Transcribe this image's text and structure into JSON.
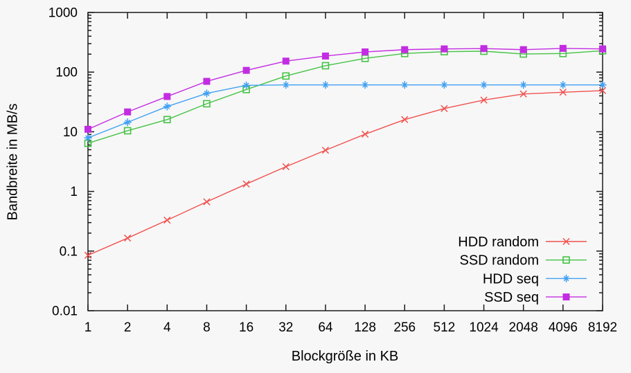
{
  "figure": {
    "title": "",
    "colors": {
      "background": "#f7f7f7",
      "axis": "#1a1a1a",
      "text": "#000000"
    }
  },
  "chart_data": {
    "type": "line",
    "title": "",
    "xlabel": "Blockgröße in KB",
    "ylabel": "Bandbreite in MB/s",
    "x_scale": "log2",
    "y_scale": "log10",
    "xlim": [
      1,
      8192
    ],
    "ylim": [
      0.01,
      1000
    ],
    "grid": false,
    "legend_position": "inside-bottom-right",
    "x": [
      1,
      2,
      4,
      8,
      16,
      32,
      64,
      128,
      256,
      512,
      1024,
      2048,
      4096,
      8192
    ],
    "x_tick_labels": [
      "1",
      "2",
      "4",
      "8",
      "16",
      "32",
      "64",
      "128",
      "256",
      "512",
      "1024",
      "2048",
      "4096",
      "8192"
    ],
    "y_ticks": [
      1000,
      100,
      10,
      1,
      0.1,
      0.01
    ],
    "y_tick_labels": [
      "1000",
      "100",
      "10",
      "1",
      "0.1",
      "0.01"
    ],
    "series": [
      {
        "name": "HDD random",
        "color": "#f0514e",
        "marker": "cross",
        "values": [
          0.085,
          0.165,
          0.33,
          0.67,
          1.33,
          2.6,
          4.9,
          9.1,
          16,
          24.5,
          34,
          43,
          46,
          49
        ]
      },
      {
        "name": "SSD random",
        "color": "#44c244",
        "marker": "open-square",
        "values": [
          6.4,
          10.4,
          16,
          29.5,
          51,
          86,
          128,
          170,
          205,
          220,
          224,
          201,
          205,
          228
        ]
      },
      {
        "name": "HDD seq",
        "color": "#41a1f2",
        "marker": "asterisk",
        "values": [
          7.9,
          14.4,
          26.5,
          44,
          60,
          61,
          61,
          61,
          61,
          61,
          61,
          61,
          61,
          61
        ]
      },
      {
        "name": "SSD seq",
        "color": "#c32ce2",
        "marker": "filled-square",
        "values": [
          11,
          21.5,
          39,
          70,
          107,
          153,
          186,
          218,
          238,
          245,
          248,
          238,
          250,
          245
        ]
      }
    ]
  }
}
